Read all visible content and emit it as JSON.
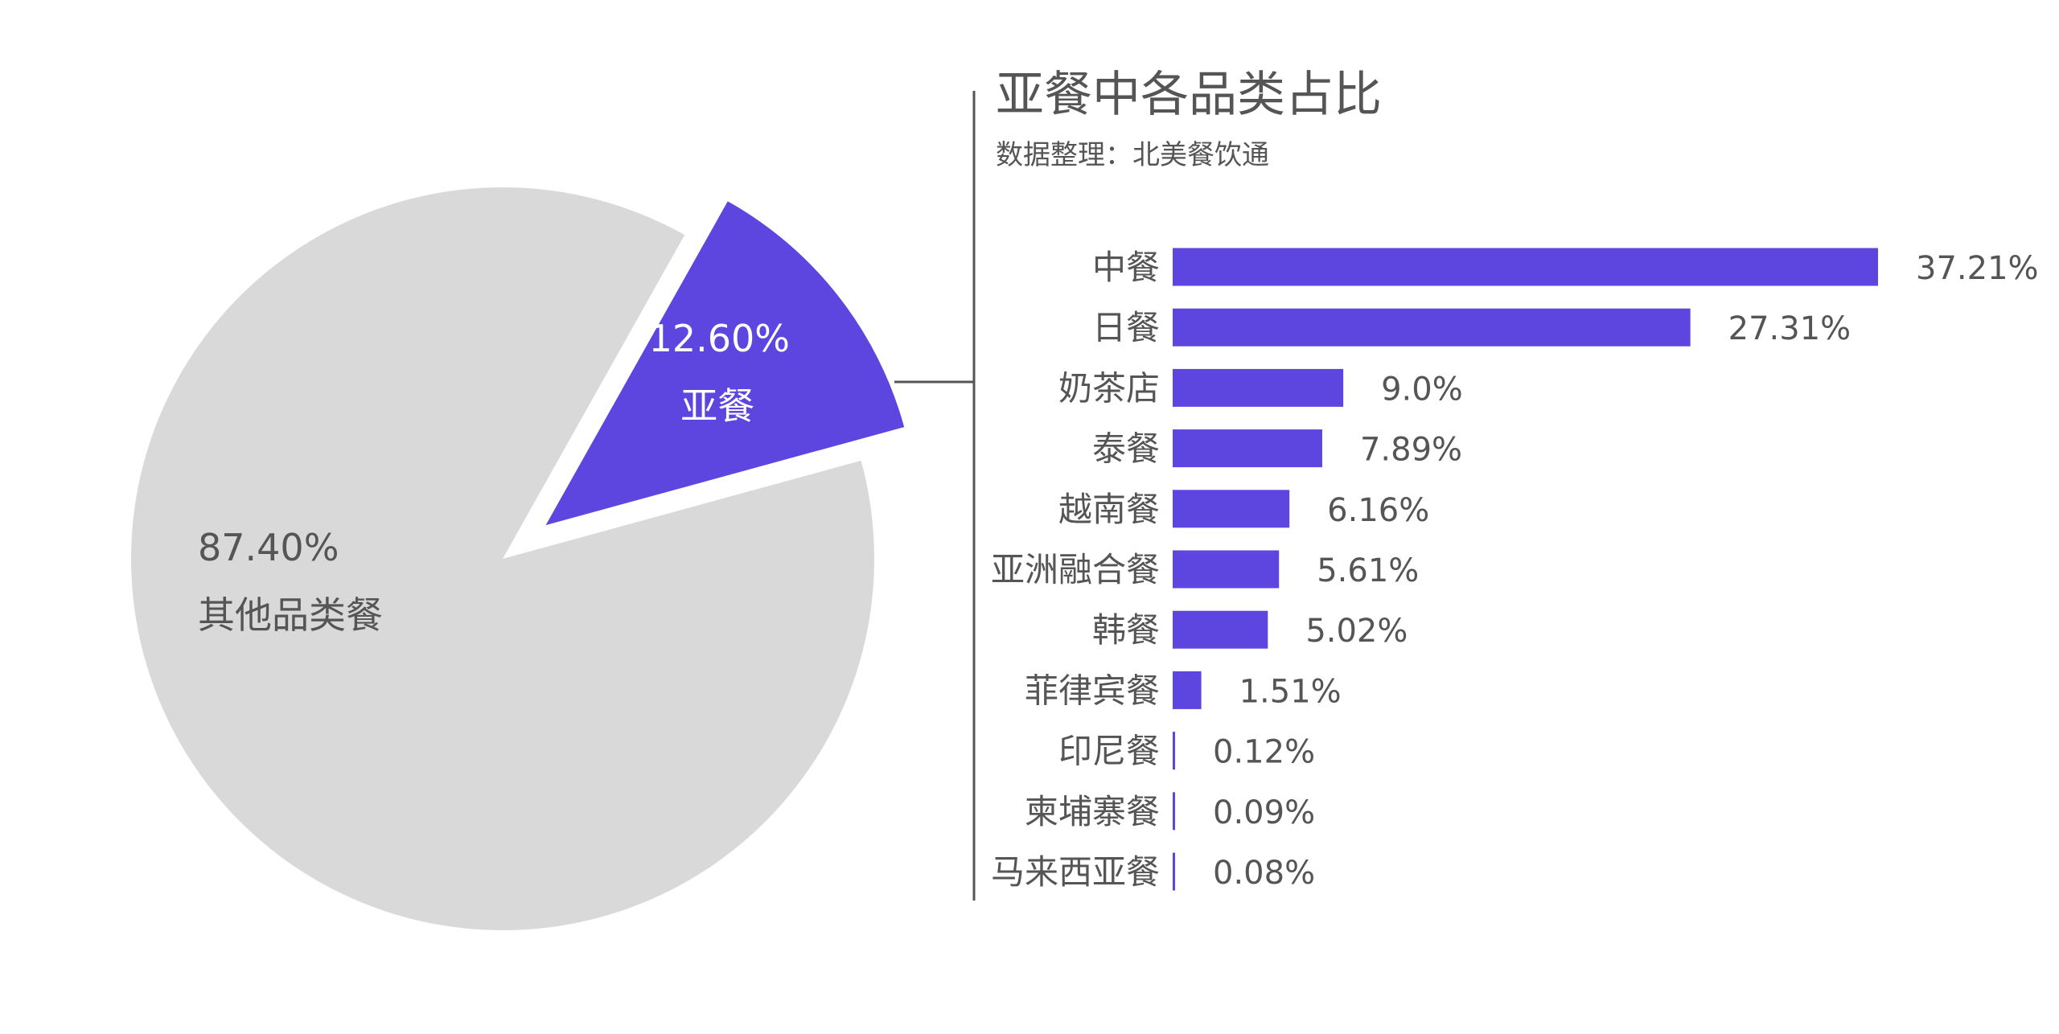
{
  "chart_data": [
    {
      "type": "pie",
      "categories": [
        "其他品类餐",
        "亚餐"
      ],
      "values": [
        87.4,
        12.6
      ],
      "value_labels": [
        "87.40%",
        "12.60%"
      ],
      "colors": [
        "#d9d9d9",
        "#5d45e0"
      ],
      "exploded": "亚餐"
    },
    {
      "type": "bar",
      "orientation": "horizontal",
      "title": "亚餐中各品类占比",
      "subtitle": "数据整理：北美餐饮通",
      "categories": [
        "中餐",
        "日餐",
        "奶茶店",
        "泰餐",
        "越南餐",
        "亚洲融合餐",
        "韩餐",
        "菲律宾餐",
        "印尼餐",
        "柬埔寨餐",
        "马来西亚餐"
      ],
      "values": [
        37.21,
        27.31,
        9.0,
        7.89,
        6.16,
        5.61,
        5.02,
        1.51,
        0.12,
        0.09,
        0.08
      ],
      "value_labels": [
        "37.21%",
        "27.31%",
        "9.0%",
        "7.89%",
        "6.16%",
        "5.61%",
        "5.02%",
        "1.51%",
        "0.12%",
        "0.09%",
        "0.08%"
      ],
      "color": "#5d45e0",
      "xlim": [
        0,
        37.21
      ]
    }
  ]
}
